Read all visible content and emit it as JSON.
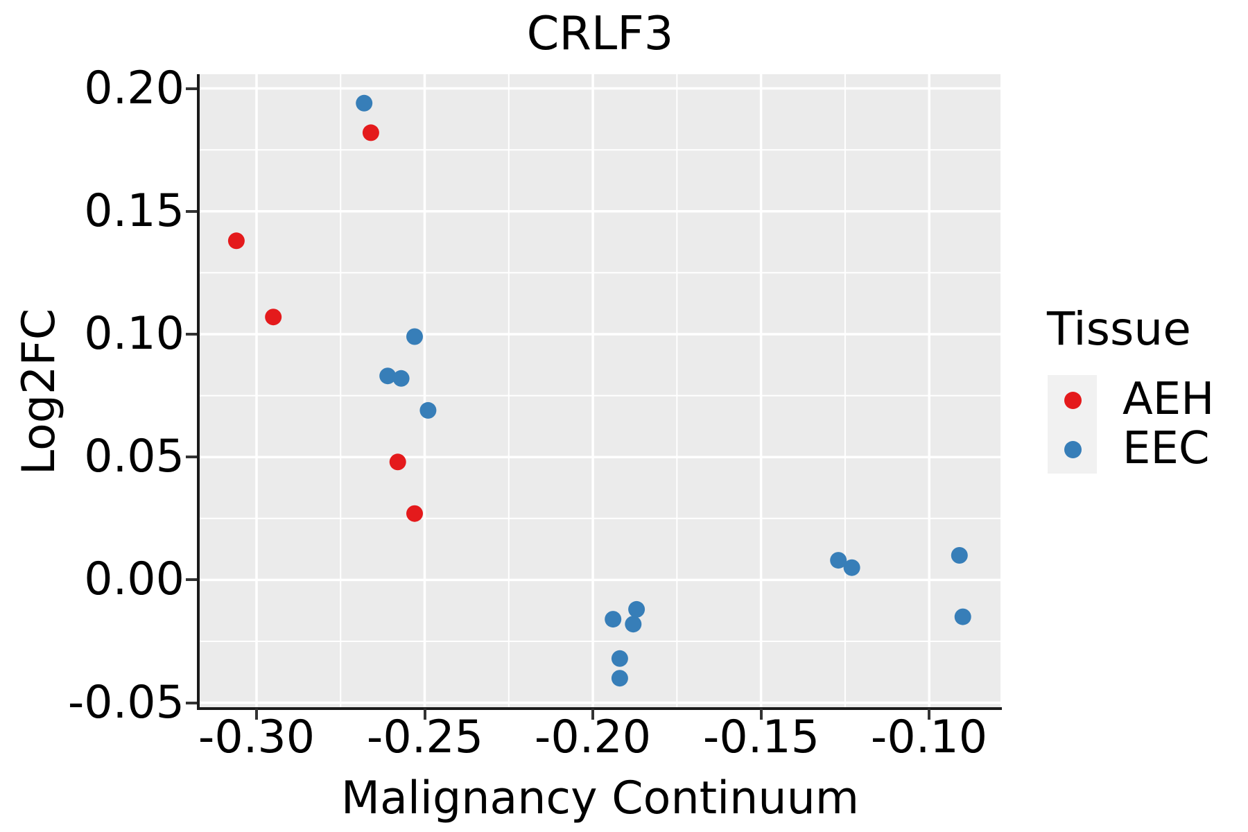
{
  "title": "CRLF3",
  "axes": {
    "x": {
      "label": "Malignancy Continuum",
      "tick_labels": [
        "-0.30",
        "-0.25",
        "-0.20",
        "-0.15",
        "-0.10"
      ],
      "tick_values": [
        -0.3,
        -0.25,
        -0.2,
        -0.15,
        -0.1
      ]
    },
    "y": {
      "label": "Log2FC",
      "tick_labels": [
        "0.20",
        "0.15",
        "0.10",
        "0.05",
        "0.00",
        "-0.05"
      ],
      "tick_values": [
        0.2,
        0.15,
        0.1,
        0.05,
        0.0,
        -0.05
      ]
    }
  },
  "legend": {
    "title": "Tissue",
    "items": [
      {
        "label": "AEH",
        "color": "#E41A1C"
      },
      {
        "label": "EEC",
        "color": "#377EB8"
      }
    ]
  },
  "colors": {
    "panel_background": "#EBEBEB",
    "grid": "#FFFFFF",
    "spine": "#1A1A1A",
    "aeh": "#E41A1C",
    "eec": "#377EB8",
    "legend_key_background": "#F1F1F1"
  },
  "chart_data": {
    "type": "scatter",
    "title": "CRLF3",
    "xlabel": "Malignancy Continuum",
    "ylabel": "Log2FC",
    "xlim": [
      -0.3169,
      -0.0788
    ],
    "ylim": [
      -0.0518,
      0.2058
    ],
    "grid": "major and minor white gridlines on gray panel",
    "legend_position": "right",
    "series": [
      {
        "name": "AEH",
        "color": "#E41A1C",
        "points": [
          [
            -0.306,
            0.138
          ],
          [
            -0.295,
            0.107
          ],
          [
            -0.266,
            0.182
          ],
          [
            -0.258,
            0.048
          ],
          [
            -0.253,
            0.027
          ]
        ]
      },
      {
        "name": "EEC",
        "color": "#377EB8",
        "points": [
          [
            -0.268,
            0.194
          ],
          [
            -0.253,
            0.099
          ],
          [
            -0.261,
            0.083
          ],
          [
            -0.257,
            0.082
          ],
          [
            -0.249,
            0.069
          ],
          [
            -0.194,
            -0.016
          ],
          [
            -0.187,
            -0.012
          ],
          [
            -0.188,
            -0.018
          ],
          [
            -0.192,
            -0.032
          ],
          [
            -0.192,
            -0.04
          ],
          [
            -0.127,
            0.008
          ],
          [
            -0.123,
            0.005
          ],
          [
            -0.091,
            0.01
          ],
          [
            -0.09,
            -0.015
          ]
        ]
      }
    ]
  }
}
